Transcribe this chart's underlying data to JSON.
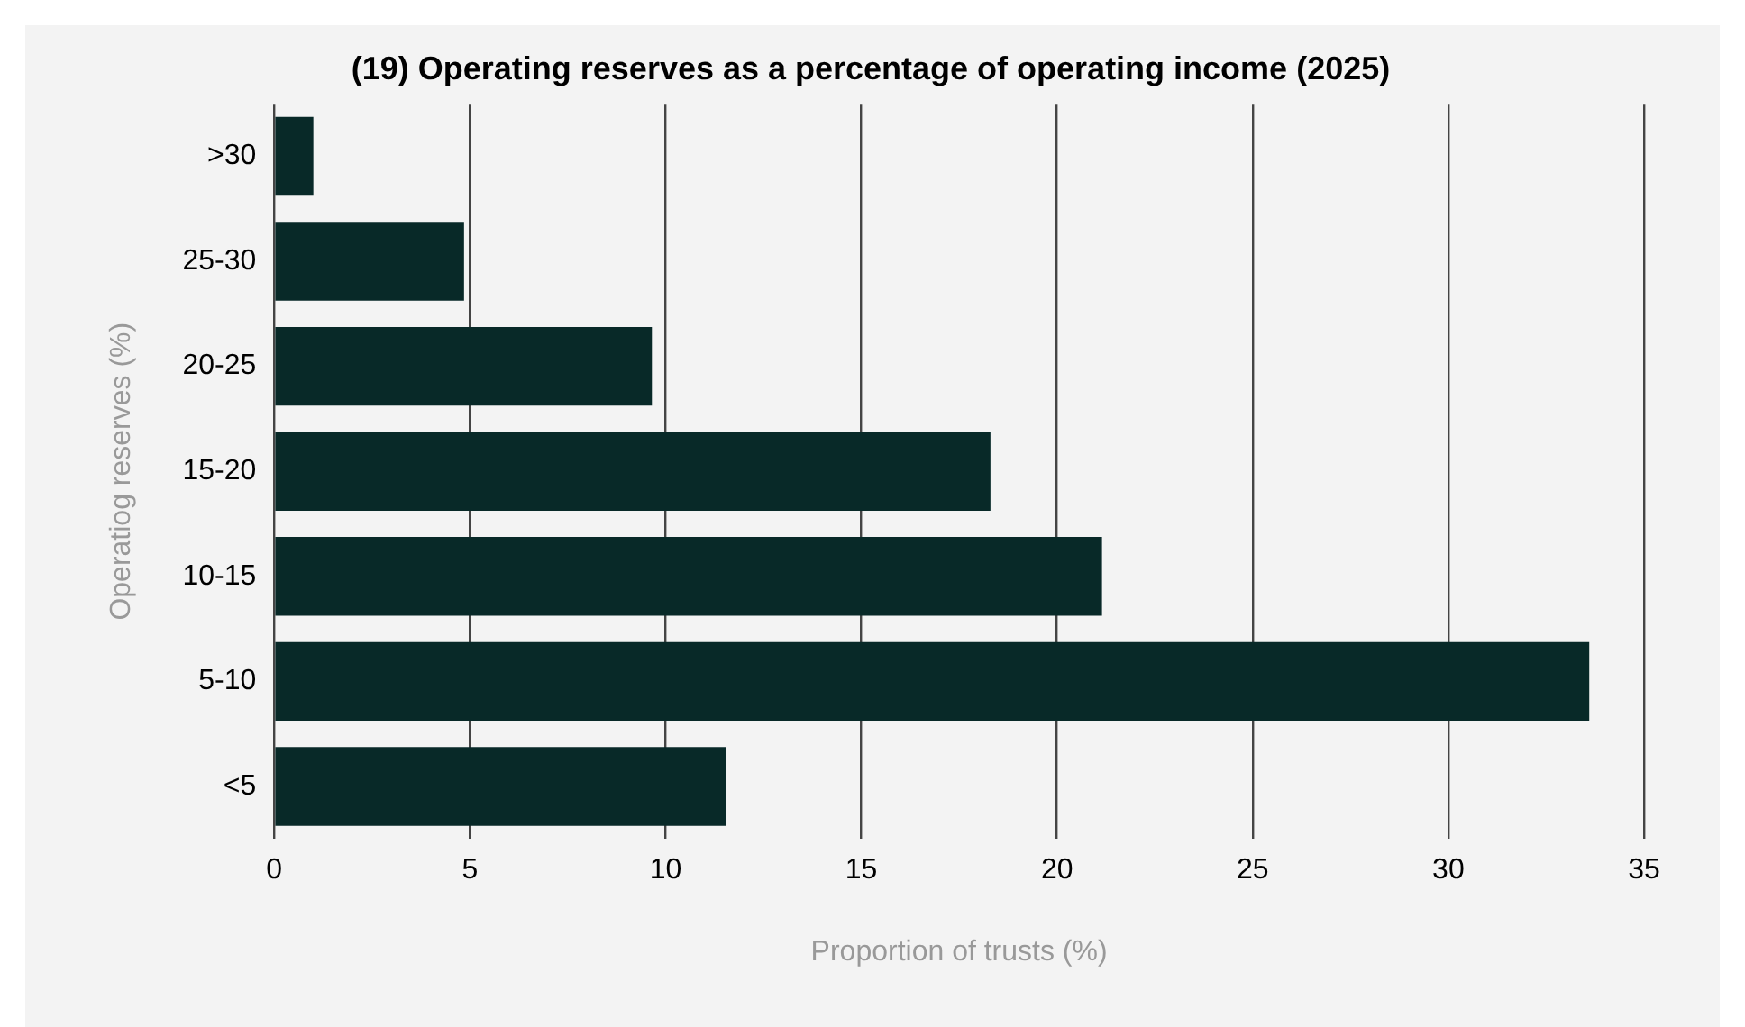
{
  "chart_data": {
    "type": "bar",
    "orientation": "horizontal",
    "title": "(19) Operating reserves as a percentage of operating income (2025)",
    "xlabel": "Proportion of trusts (%)",
    "ylabel": "Operatiog reserves (%)",
    "categories": [
      ">30",
      "25-30",
      "20-25",
      "15-20",
      "10-15",
      "5-10",
      "<5"
    ],
    "values": [
      1.0,
      4.85,
      9.65,
      18.3,
      21.15,
      33.6,
      11.55
    ],
    "color": "#082928",
    "xlim": [
      0,
      35
    ],
    "xticks": [
      0,
      5,
      10,
      15,
      20,
      25,
      30,
      35
    ],
    "grid": "x",
    "legend": false
  }
}
